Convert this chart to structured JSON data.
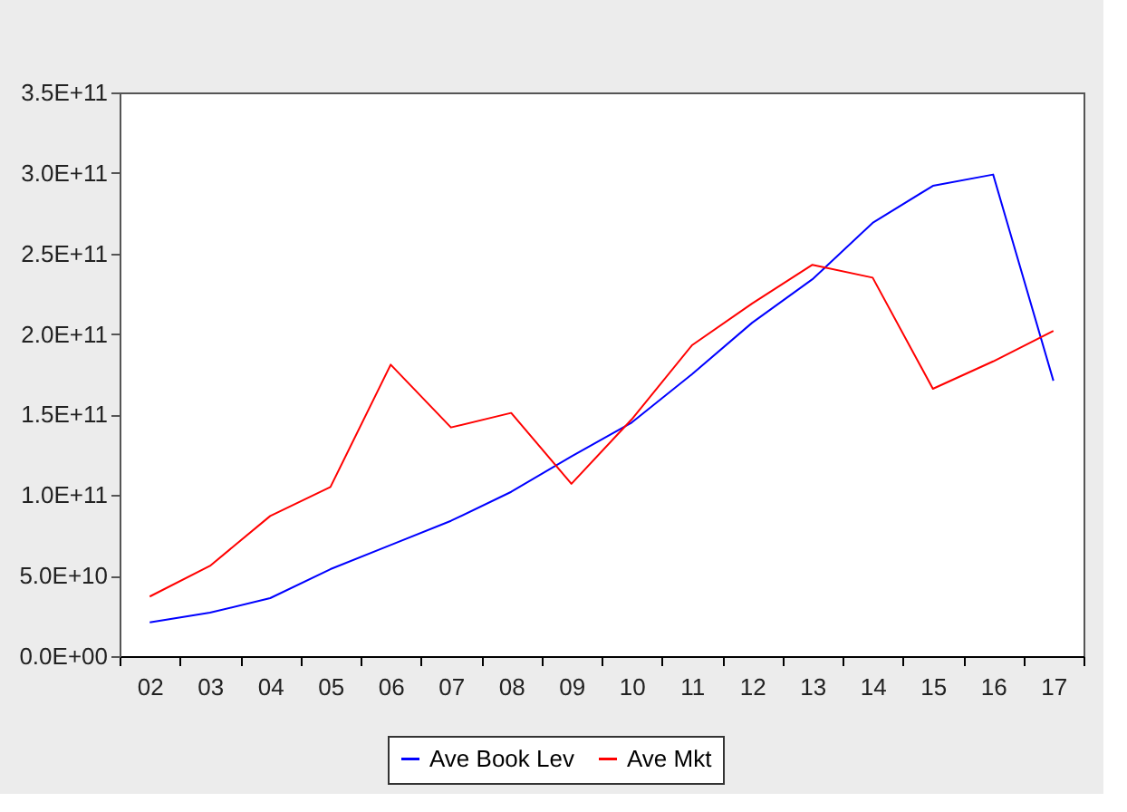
{
  "chart_data": {
    "type": "line",
    "categories": [
      "02",
      "03",
      "04",
      "05",
      "06",
      "07",
      "08",
      "09",
      "10",
      "11",
      "12",
      "13",
      "14",
      "15",
      "16",
      "17"
    ],
    "ylim": [
      0,
      350000000000
    ],
    "yticks": [
      {
        "value": 0,
        "label": "0.0E+00"
      },
      {
        "value": 50000000000,
        "label": "5.0E+10"
      },
      {
        "value": 100000000000,
        "label": "1.0E+11"
      },
      {
        "value": 150000000000,
        "label": "1.5E+11"
      },
      {
        "value": 200000000000,
        "label": "2.0E+11"
      },
      {
        "value": 250000000000,
        "label": "2.5E+11"
      },
      {
        "value": 300000000000,
        "label": "3.0E+11"
      },
      {
        "value": 350000000000,
        "label": "3.5E+11"
      }
    ],
    "series": [
      {
        "name": "Ave Book Lev",
        "color": "#0000ff",
        "values": [
          21000000000,
          27000000000,
          36000000000,
          54000000000,
          69000000000,
          84000000000,
          102000000000,
          124000000000,
          145000000000,
          175000000000,
          207000000000,
          234000000000,
          269000000000,
          292000000000,
          299000000000,
          171000000000
        ]
      },
      {
        "name": "Ave Mkt",
        "color": "#ff0000",
        "values": [
          37000000000,
          56000000000,
          87000000000,
          105000000000,
          181000000000,
          142000000000,
          151000000000,
          107000000000,
          147000000000,
          193000000000,
          219000000000,
          243000000000,
          235000000000,
          166000000000,
          183000000000,
          202000000000
        ]
      }
    ],
    "grid": false,
    "legend": "bottom",
    "line_style": "solid",
    "marker": "none"
  }
}
